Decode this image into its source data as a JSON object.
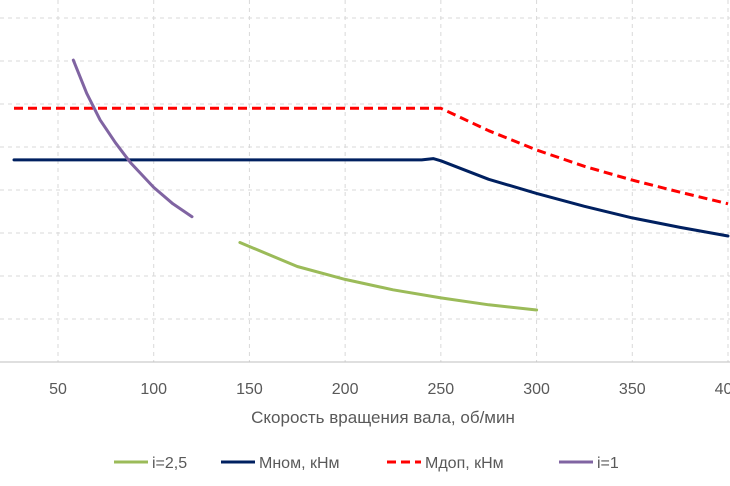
{
  "chart_data": {
    "type": "line",
    "title": "",
    "xlabel": "Скорость вращения вала, об/мин",
    "ylabel": "",
    "xlim": [
      27,
      400
    ],
    "ylim": [
      0,
      8
    ],
    "xticks": [
      50,
      100,
      150,
      200,
      250,
      300,
      350,
      400
    ],
    "grid": "vertical dashed + horizontal dashed",
    "legend_position": "bottom",
    "series": [
      {
        "name": "i=2,5",
        "color": "#9BBB59",
        "style": "solid",
        "x": [
          145,
          175,
          200,
          225,
          250,
          275,
          300
        ],
        "y": [
          2.78,
          2.22,
          1.92,
          1.68,
          1.49,
          1.33,
          1.21
        ]
      },
      {
        "name": "Мном, кНм",
        "color": "#002060",
        "style": "solid",
        "x": [
          27,
          100,
          200,
          240,
          246,
          250,
          275,
          300,
          325,
          350,
          375,
          400
        ],
        "y": [
          4.7,
          4.7,
          4.7,
          4.7,
          4.73,
          4.68,
          4.25,
          3.92,
          3.62,
          3.35,
          3.13,
          2.93
        ]
      },
      {
        "name": "Мдоп, кНм",
        "color": "#FF0000",
        "style": "dashed",
        "x": [
          27,
          100,
          200,
          250,
          275,
          300,
          325,
          350,
          375,
          400
        ],
        "y": [
          5.9,
          5.9,
          5.9,
          5.9,
          5.38,
          4.93,
          4.55,
          4.23,
          3.95,
          3.68
        ]
      },
      {
        "name": "i=1",
        "color": "#8064A2",
        "style": "solid",
        "x": [
          58,
          65,
          72,
          80,
          88,
          100,
          110,
          120
        ],
        "y": [
          7.02,
          6.25,
          5.63,
          5.1,
          4.63,
          4.06,
          3.68,
          3.38
        ]
      }
    ]
  }
}
